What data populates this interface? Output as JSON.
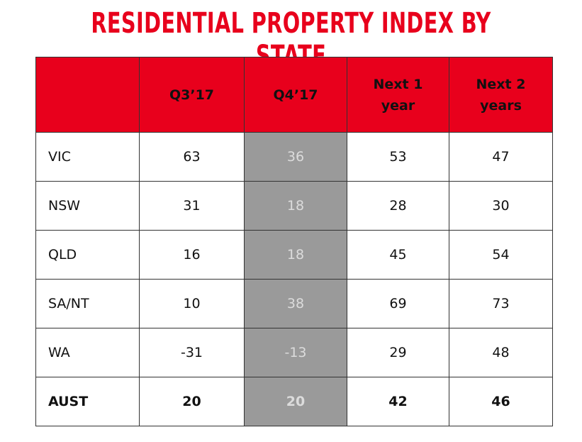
{
  "title": "RESIDENTIAL PROPERTY INDEX BY STATE",
  "colors": {
    "header_bg": "#e8001c",
    "title": "#e8001c",
    "highlight_col_bg": "#9a9a9a"
  },
  "chart_data": {
    "type": "table",
    "title": "RESIDENTIAL PROPERTY INDEX BY STATE",
    "columns": [
      "",
      "Q3’17",
      "Q4’17",
      "Next 1 year",
      "Next 2 years"
    ],
    "header_lines": [
      [
        ""
      ],
      [
        "Q3’17"
      ],
      [
        "Q4’17"
      ],
      [
        "Next 1",
        "year"
      ],
      [
        "Next 2",
        "years"
      ]
    ],
    "highlighted_column": "Q4’17",
    "rows": [
      {
        "state": "VIC",
        "values": [
          "63",
          "36",
          "53",
          "47"
        ]
      },
      {
        "state": "NSW",
        "values": [
          "31",
          "18",
          "28",
          "30"
        ]
      },
      {
        "state": "QLD",
        "values": [
          "16",
          "18",
          "45",
          "54"
        ]
      },
      {
        "state": "SA/NT",
        "values": [
          "10",
          "38",
          "69",
          "73"
        ]
      },
      {
        "state": "WA",
        "values": [
          "-31",
          "-13",
          "29",
          "48"
        ]
      },
      {
        "state": "AUST",
        "values": [
          "20",
          "20",
          "42",
          "46"
        ],
        "bold": true
      }
    ]
  }
}
